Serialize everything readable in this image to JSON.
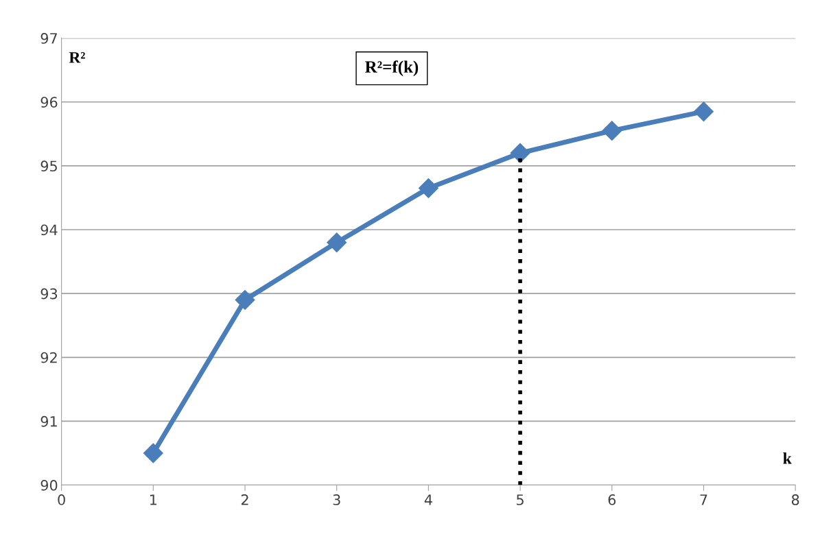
{
  "chart_data": {
    "type": "line",
    "title": "R²=f(k)",
    "xlabel": "k",
    "ylabel": "R²",
    "x": [
      1,
      2,
      3,
      4,
      5,
      6,
      7
    ],
    "series": [
      {
        "color": "#4a7ebb",
        "values": [
          90.5,
          92.9,
          93.8,
          94.65,
          95.2,
          95.55,
          95.85
        ]
      }
    ],
    "xlim": [
      0,
      8
    ],
    "xticks": [
      0,
      1,
      2,
      3,
      4,
      5,
      6,
      7,
      8
    ],
    "ylim": [
      90,
      97
    ],
    "yticks": [
      90,
      91,
      92,
      93,
      94,
      95,
      96,
      97
    ],
    "grid": "y",
    "marker": "diamond",
    "line_style": "solid",
    "ref_lines": [
      {
        "axis": "x",
        "value": 5,
        "color": "#000000",
        "line_style": "dotted"
      }
    ]
  }
}
